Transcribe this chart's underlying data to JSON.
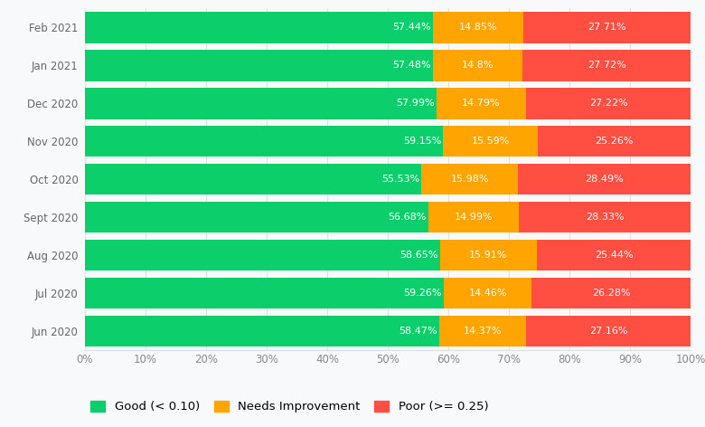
{
  "categories": [
    "Feb 2021",
    "Jan 2021",
    "Dec 2020",
    "Nov 2020",
    "Oct 2020",
    "Sept 2020",
    "Aug 2020",
    "Jul 2020",
    "Jun 2020"
  ],
  "good": [
    57.44,
    57.48,
    57.99,
    59.15,
    55.53,
    56.68,
    58.65,
    59.26,
    58.47
  ],
  "needs_improvement": [
    14.85,
    14.8,
    14.79,
    15.59,
    15.98,
    14.99,
    15.91,
    14.46,
    14.37
  ],
  "poor": [
    27.71,
    27.72,
    27.22,
    25.26,
    28.49,
    28.33,
    25.44,
    26.28,
    27.16
  ],
  "good_color": "#0CCE6B",
  "needs_color": "#FFA400",
  "poor_color": "#FF4E42",
  "bg_color": "#f8f9fa",
  "plot_bg_color": "#f8f9fa",
  "bar_height": 0.82,
  "label_fontsize": 8.0,
  "tick_fontsize": 8.5,
  "legend_fontsize": 9.5,
  "legend_labels": [
    "Good (< 0.10)",
    "Needs Improvement",
    "Poor (>= 0.25)"
  ],
  "ytick_color": "#666666",
  "xtick_color": "#888888",
  "grid_color": "#e0e0e0"
}
